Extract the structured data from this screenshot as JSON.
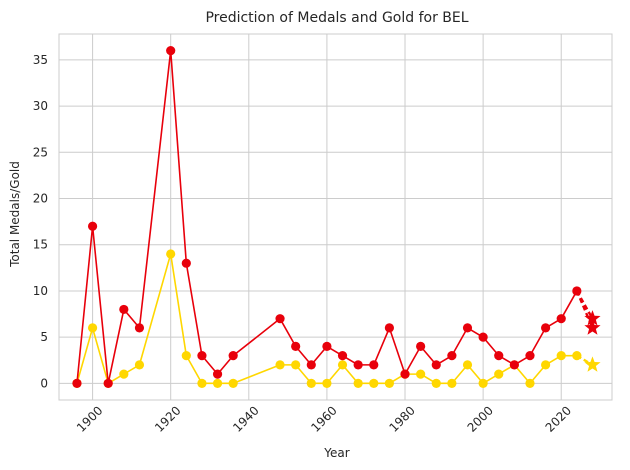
{
  "chart_data": {
    "type": "line",
    "title": "Prediction of Medals and Gold for BEL",
    "xlabel": "Year",
    "ylabel": "Total Medals/Gold",
    "xlim": [
      1891.4,
      2033.0
    ],
    "ylim": [
      -1.8,
      37.8
    ],
    "xticks": [
      1900,
      1920,
      1940,
      1960,
      1980,
      2000,
      2020
    ],
    "yticks": [
      0,
      5,
      10,
      15,
      20,
      25,
      30,
      35
    ],
    "grid": true,
    "colors": {
      "total": "#e8000b",
      "gold": "#ffd700",
      "grid": "#cccccc",
      "spine": "#cccccc"
    },
    "series": [
      {
        "key": "total",
        "x": [
          1896,
          1900,
          1904,
          1908,
          1912,
          1920,
          1924,
          1928,
          1932,
          1936,
          1948,
          1952,
          1956,
          1960,
          1964,
          1968,
          1972,
          1976,
          1980,
          1984,
          1988,
          1992,
          1996,
          2000,
          2004,
          2008,
          2012,
          2016,
          2020,
          2024
        ],
        "values": [
          0,
          17,
          0,
          8,
          6,
          36,
          13,
          3,
          1,
          3,
          7,
          4,
          2,
          4,
          3,
          2,
          2,
          6,
          1,
          4,
          2,
          3,
          6,
          5,
          3,
          2,
          3,
          6,
          7,
          10
        ]
      },
      {
        "key": "gold",
        "x": [
          1896,
          1900,
          1904,
          1908,
          1912,
          1920,
          1924,
          1928,
          1932,
          1936,
          1948,
          1952,
          1956,
          1960,
          1964,
          1968,
          1972,
          1976,
          1980,
          1984,
          1988,
          1992,
          1996,
          2000,
          2004,
          2008,
          2012,
          2016,
          2020,
          2024
        ],
        "values": [
          0,
          6,
          0,
          1,
          2,
          14,
          3,
          0,
          0,
          0,
          2,
          2,
          0,
          0,
          2,
          0,
          0,
          0,
          1,
          1,
          0,
          0,
          2,
          0,
          1,
          2,
          0,
          2,
          3,
          3
        ]
      }
    ],
    "predictions": [
      {
        "key": "total",
        "from": [
          2024,
          10
        ],
        "x": 2028,
        "values": [
          7,
          6
        ]
      },
      {
        "key": "gold",
        "from": [
          2024,
          3
        ],
        "x": 2028,
        "values": [
          2
        ]
      }
    ]
  }
}
